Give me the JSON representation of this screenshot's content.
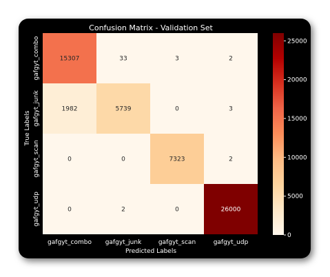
{
  "chart_data": {
    "type": "heatmap",
    "title": "Confusion Matrix - Validation Set",
    "xlabel": "Predicted Labels",
    "ylabel": "True Labels",
    "x_categories": [
      "gafgyt_combo",
      "gafgyt_junk",
      "gafgyt_scan",
      "gafgyt_udp"
    ],
    "y_categories": [
      "gafgyt_combo",
      "gafgyt_junk",
      "gafgyt_scan",
      "gafgyt_udp"
    ],
    "values": [
      [
        15307,
        33,
        3,
        2
      ],
      [
        1982,
        5739,
        0,
        3
      ],
      [
        0,
        0,
        7323,
        2
      ],
      [
        0,
        2,
        0,
        26000
      ]
    ],
    "colormap": "OrRd",
    "colorbar": {
      "min": 0,
      "max": 26000,
      "ticks": [
        0,
        5000,
        10000,
        15000,
        20000,
        25000
      ]
    }
  }
}
